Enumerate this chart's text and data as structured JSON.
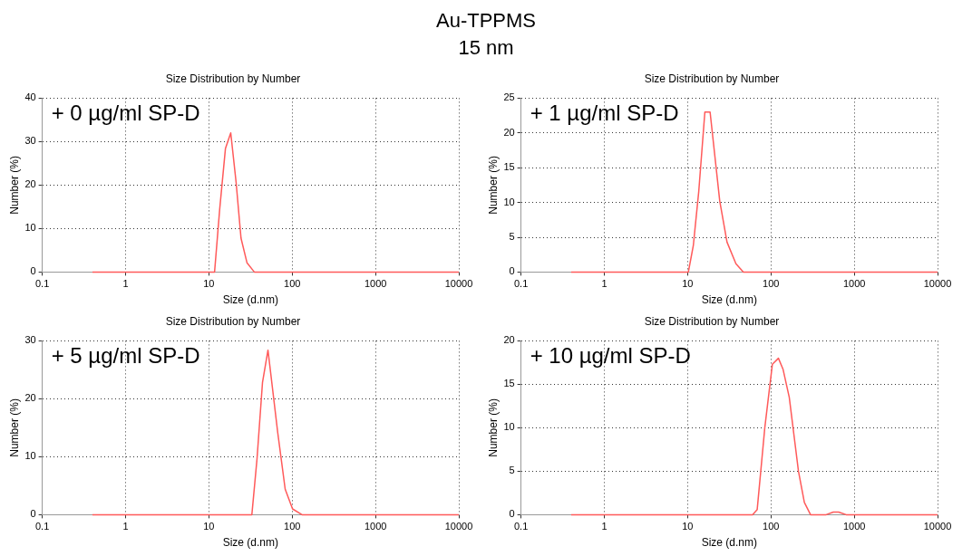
{
  "chart_data": [
    {
      "type": "other",
      "title": "Au-TPPMS",
      "subtitle": "15 nm"
    },
    {
      "type": "line",
      "title": "Size Distribution by Number",
      "xlabel": "Size (d.nm)",
      "ylabel": "Number (%)",
      "annotations": [
        "+ 0 µg/ml SP-D"
      ],
      "log": "x",
      "grid": true,
      "marker": "none",
      "xlim": [
        0.1,
        10000
      ],
      "xticks": [
        0.1,
        1,
        10,
        100,
        1000,
        10000
      ],
      "ylim": [
        0,
        40
      ],
      "yticks": [
        0,
        10,
        20,
        30,
        40
      ],
      "x": [
        0.4,
        11.7,
        13.5,
        15.8,
        18.3,
        21.2,
        24.3,
        28.7,
        35.1,
        10000
      ],
      "series": [
        {
          "color": "#ff5a5a",
          "values": [
            0,
            0,
            14.6,
            28.4,
            32,
            20.7,
            7.8,
            2.1,
            0,
            0
          ]
        }
      ]
    },
    {
      "type": "line",
      "title": "Size Distribution by Number",
      "xlabel": "Size (d.nm)",
      "ylabel": "Number (%)",
      "annotations": [
        "+ 1 µg/ml SP-D"
      ],
      "log": "x",
      "grid": true,
      "marker": "none",
      "xlim": [
        0.1,
        10000
      ],
      "xticks": [
        0.1,
        1,
        10,
        100,
        1000,
        10000
      ],
      "ylim": [
        0,
        25
      ],
      "yticks": [
        0,
        5,
        10,
        15,
        20,
        25
      ],
      "x": [
        0.4,
        10.2,
        11.7,
        13.6,
        16.1,
        18.6,
        24.3,
        29.7,
        38,
        46.7,
        10000
      ],
      "series": [
        {
          "color": "#ff5a5a",
          "values": [
            0,
            0,
            3.8,
            11.6,
            23,
            23,
            10.2,
            4.3,
            1.2,
            0,
            0
          ]
        }
      ]
    },
    {
      "type": "line",
      "title": "Size Distribution by Number",
      "xlabel": "Size (d.nm)",
      "ylabel": "Number (%)",
      "annotations": [
        "+ 5 µg/ml SP-D"
      ],
      "log": "x",
      "grid": true,
      "marker": "none",
      "xlim": [
        0.1,
        10000
      ],
      "xticks": [
        0.1,
        1,
        10,
        100,
        1000,
        10000
      ],
      "ylim": [
        0,
        30
      ],
      "yticks": [
        0,
        10,
        20,
        30
      ],
      "x": [
        0.4,
        32.8,
        37.8,
        44,
        51.2,
        67,
        82.4,
        101,
        131,
        10000
      ],
      "series": [
        {
          "color": "#ff5a5a",
          "values": [
            0,
            0,
            9.6,
            22.8,
            28.4,
            14.2,
            4.4,
            1,
            0,
            0
          ]
        }
      ]
    },
    {
      "type": "line",
      "title": "Size Distribution by Number",
      "xlabel": "Size (d.nm)",
      "ylabel": "Number (%)",
      "annotations": [
        "+ 10 µg/ml SP-D"
      ],
      "log": "x",
      "grid": true,
      "marker": "none",
      "xlim": [
        0.1,
        10000
      ],
      "xticks": [
        0.1,
        1,
        10,
        100,
        1000,
        10000
      ],
      "ylim": [
        0,
        20
      ],
      "yticks": [
        0,
        5,
        10,
        15,
        20
      ],
      "x": [
        0.4,
        60.2,
        68.4,
        84.4,
        104,
        123,
        140,
        166,
        214,
        252,
        299,
        460,
        560,
        650,
        800,
        10000
      ],
      "series": [
        {
          "color": "#ff5a5a",
          "values": [
            0,
            0,
            0.6,
            10,
            17.3,
            18,
            16.7,
            13.5,
            5,
            1.4,
            0,
            0,
            0.3,
            0.3,
            0,
            0
          ]
        }
      ]
    }
  ]
}
